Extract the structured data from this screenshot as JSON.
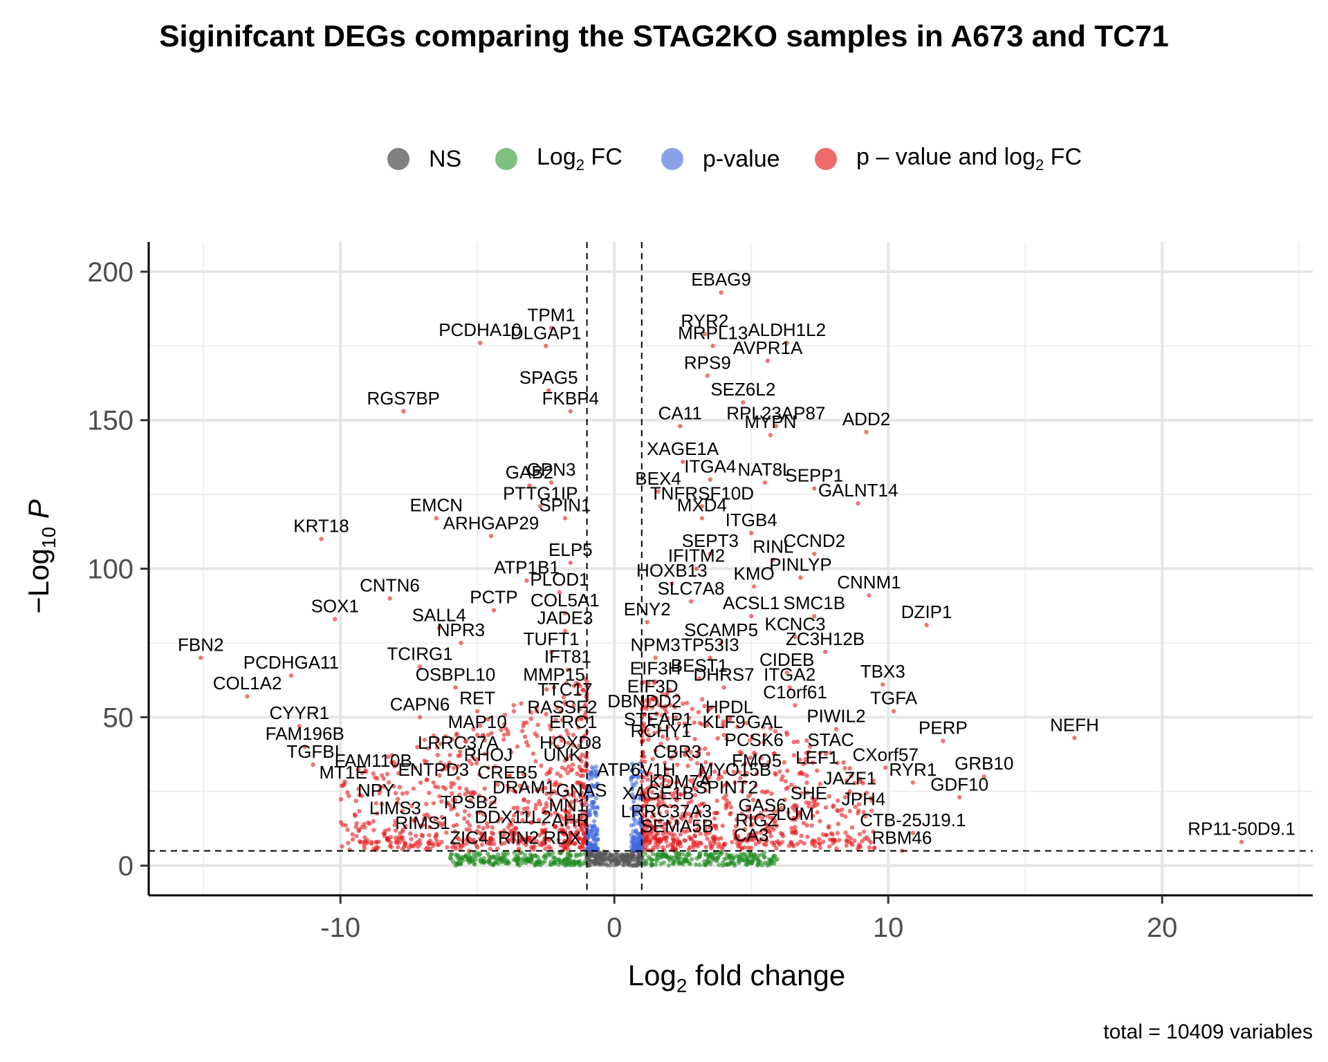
{
  "title": "Siginifcant DEGs comparing the STAG2KO samples in A673 and TC71",
  "caption": "total = 10409 variables",
  "legend": [
    {
      "key": "NS",
      "label": "NS",
      "color": "#808080"
    },
    {
      "key": "FC",
      "label": "Log",
      "sub": "2",
      "after": " FC",
      "color": "#7fbf7f"
    },
    {
      "key": "P",
      "label": "p-value",
      "color": "#8aa2e8"
    },
    {
      "key": "FC_P",
      "label": "p – value and log",
      "sub": "2",
      "after": " FC",
      "color": "#ee6b6b"
    }
  ],
  "chart_data": {
    "type": "scatter",
    "title": "Siginifcant DEGs comparing the STAG2KO samples in A673 and TC71",
    "xlabel": "Log2 fold change",
    "ylabel": "-Log10 P",
    "xlim": [
      -17,
      25.5
    ],
    "ylim": [
      -10,
      210
    ],
    "x_ticks": [
      -10,
      0,
      10,
      20
    ],
    "y_ticks": [
      0,
      50,
      100,
      150,
      200
    ],
    "grid": true,
    "legend_position": "top",
    "fc_cutoff": 1,
    "p_cutoff_neglog10": 5,
    "colors": {
      "NS": "#595959",
      "FC": "#228b22",
      "P": "#4169e1",
      "FC_P": "#e41a1c"
    },
    "labeled_genes": [
      {
        "label": "EBAG9",
        "x": 3.9,
        "y": 193
      },
      {
        "label": "PCDHA10",
        "x": -4.9,
        "y": 176
      },
      {
        "label": "TPM1",
        "x": -2.3,
        "y": 181
      },
      {
        "label": "DLGAP1",
        "x": -2.5,
        "y": 175
      },
      {
        "label": "RYR2",
        "x": 3.3,
        "y": 179
      },
      {
        "label": "ALDH1L2",
        "x": 6.3,
        "y": 176
      },
      {
        "label": "MRPL13",
        "x": 3.6,
        "y": 175
      },
      {
        "label": "AVPR1A",
        "x": 5.6,
        "y": 170
      },
      {
        "label": "RPS9",
        "x": 3.4,
        "y": 165
      },
      {
        "label": "SPAG5",
        "x": -2.4,
        "y": 160
      },
      {
        "label": "SEZ6L2",
        "x": 4.7,
        "y": 156
      },
      {
        "label": "RGS7BP",
        "x": -7.7,
        "y": 153
      },
      {
        "label": "FKBP4",
        "x": -1.6,
        "y": 153
      },
      {
        "label": "CA11",
        "x": 2.4,
        "y": 148
      },
      {
        "label": "RPL23AP87",
        "x": 5.9,
        "y": 148
      },
      {
        "label": "MYPN",
        "x": 5.7,
        "y": 145
      },
      {
        "label": "ADD2",
        "x": 9.2,
        "y": 146
      },
      {
        "label": "XAGE1A",
        "x": 2.5,
        "y": 136
      },
      {
        "label": "NAT8L",
        "x": 5.5,
        "y": 129
      },
      {
        "label": "ITGA4",
        "x": 3.5,
        "y": 130
      },
      {
        "label": "GAB2",
        "x": -3.1,
        "y": 128
      },
      {
        "label": "GPN3",
        "x": -2.3,
        "y": 129
      },
      {
        "label": "BEX4",
        "x": 1.6,
        "y": 126
      },
      {
        "label": "SEPP1",
        "x": 7.3,
        "y": 127
      },
      {
        "label": "PTTG1IP",
        "x": -2.7,
        "y": 121
      },
      {
        "label": "TNFRSF10D",
        "x": 3.2,
        "y": 121
      },
      {
        "label": "GALNT14",
        "x": 8.9,
        "y": 122
      },
      {
        "label": "EMCN",
        "x": -6.5,
        "y": 117
      },
      {
        "label": "SPIN1",
        "x": -1.8,
        "y": 117
      },
      {
        "label": "MXD4",
        "x": 3.2,
        "y": 117
      },
      {
        "label": "ARHGAP29",
        "x": -4.5,
        "y": 111
      },
      {
        "label": "ITGB4",
        "x": 5.0,
        "y": 112
      },
      {
        "label": "KRT18",
        "x": -10.7,
        "y": 110
      },
      {
        "label": "SEPT3",
        "x": 3.5,
        "y": 105
      },
      {
        "label": "RINL",
        "x": 5.8,
        "y": 103
      },
      {
        "label": "CCND2",
        "x": 7.3,
        "y": 105
      },
      {
        "label": "ELP5",
        "x": -1.6,
        "y": 102
      },
      {
        "label": "IFITM2",
        "x": 3.0,
        "y": 100
      },
      {
        "label": "PINLYP",
        "x": 6.8,
        "y": 97
      },
      {
        "label": "ATP1B1",
        "x": -3.2,
        "y": 96
      },
      {
        "label": "HOXB13",
        "x": 2.1,
        "y": 95
      },
      {
        "label": "KMO",
        "x": 5.1,
        "y": 94
      },
      {
        "label": "CNTN6",
        "x": -8.2,
        "y": 90
      },
      {
        "label": "PLOD1",
        "x": -2.0,
        "y": 92
      },
      {
        "label": "CNNM1",
        "x": 9.3,
        "y": 91
      },
      {
        "label": "PCTP",
        "x": -4.4,
        "y": 86
      },
      {
        "label": "SLC7A8",
        "x": 2.8,
        "y": 89
      },
      {
        "label": "COL5A1",
        "x": -1.8,
        "y": 85
      },
      {
        "label": "ACSL1",
        "x": 5.0,
        "y": 84
      },
      {
        "label": "SMC1B",
        "x": 7.3,
        "y": 84
      },
      {
        "label": "DZIP1",
        "x": 11.4,
        "y": 81
      },
      {
        "label": "SOX1",
        "x": -10.2,
        "y": 83
      },
      {
        "label": "SALL4",
        "x": -6.4,
        "y": 80
      },
      {
        "label": "ENY2",
        "x": 1.2,
        "y": 82
      },
      {
        "label": "JADE3",
        "x": -1.8,
        "y": 79
      },
      {
        "label": "KCNC3",
        "x": 6.6,
        "y": 77
      },
      {
        "label": "NPR3",
        "x": -5.6,
        "y": 75
      },
      {
        "label": "SCAMP5",
        "x": 3.9,
        "y": 75
      },
      {
        "label": "ZC3H12B",
        "x": 7.7,
        "y": 72
      },
      {
        "label": "TUFT1",
        "x": -2.3,
        "y": 72
      },
      {
        "label": "FBN2",
        "x": -15.1,
        "y": 70
      },
      {
        "label": "NPM3",
        "x": 1.5,
        "y": 70
      },
      {
        "label": "TP53I3",
        "x": 3.5,
        "y": 70
      },
      {
        "label": "TCIRG1",
        "x": -7.1,
        "y": 67
      },
      {
        "label": "PCDHGA11",
        "x": -11.8,
        "y": 64
      },
      {
        "label": "IFT81",
        "x": -1.7,
        "y": 66
      },
      {
        "label": "CIDEB",
        "x": 6.3,
        "y": 65
      },
      {
        "label": "BEST1",
        "x": 3.1,
        "y": 63
      },
      {
        "label": "EIF3H",
        "x": 1.5,
        "y": 62
      },
      {
        "label": "TBX3",
        "x": 9.8,
        "y": 61
      },
      {
        "label": "OSBPL10",
        "x": -5.8,
        "y": 60
      },
      {
        "label": "MMP15",
        "x": -2.2,
        "y": 60
      },
      {
        "label": "DHRS7",
        "x": 4.0,
        "y": 60
      },
      {
        "label": "ITGA2",
        "x": 6.4,
        "y": 60
      },
      {
        "label": "EIF3D",
        "x": 1.4,
        "y": 56
      },
      {
        "label": "TTC17",
        "x": -1.8,
        "y": 55
      },
      {
        "label": "C1orf61",
        "x": 6.6,
        "y": 54
      },
      {
        "label": "COL1A2",
        "x": -13.4,
        "y": 57
      },
      {
        "label": "RET",
        "x": -5.0,
        "y": 52
      },
      {
        "label": "TGFA",
        "x": 10.2,
        "y": 52
      },
      {
        "label": "CAPN6",
        "x": -7.1,
        "y": 50
      },
      {
        "label": "RASSF2",
        "x": -1.9,
        "y": 49
      },
      {
        "label": "DBNDD2",
        "x": 1.1,
        "y": 51
      },
      {
        "label": "HPDL",
        "x": 4.2,
        "y": 49
      },
      {
        "label": "CYYR1",
        "x": -11.5,
        "y": 47
      },
      {
        "label": "PIWIL2",
        "x": 8.1,
        "y": 46
      },
      {
        "label": "STEAP1",
        "x": 1.6,
        "y": 45
      },
      {
        "label": "MAP10",
        "x": -5.0,
        "y": 44
      },
      {
        "label": "ERC1",
        "x": -1.5,
        "y": 44
      },
      {
        "label": "KLF9",
        "x": 4.0,
        "y": 44
      },
      {
        "label": "GAL",
        "x": 5.5,
        "y": 44
      },
      {
        "label": "NEFH",
        "x": 16.8,
        "y": 43
      },
      {
        "label": "PERP",
        "x": 12.0,
        "y": 42
      },
      {
        "label": "FAM196B",
        "x": -11.3,
        "y": 40
      },
      {
        "label": "RCHY1",
        "x": 1.7,
        "y": 41
      },
      {
        "label": "LRRC37A",
        "x": -5.7,
        "y": 37
      },
      {
        "label": "HOXD8",
        "x": -1.6,
        "y": 37
      },
      {
        "label": "PCSK6",
        "x": 5.1,
        "y": 38
      },
      {
        "label": "STAC",
        "x": 7.9,
        "y": 38
      },
      {
        "label": "CBR3",
        "x": 2.3,
        "y": 34
      },
      {
        "label": "TGFBI",
        "x": -11.0,
        "y": 34
      },
      {
        "label": "RHOJ",
        "x": -4.6,
        "y": 33
      },
      {
        "label": "UNK",
        "x": -1.9,
        "y": 33
      },
      {
        "label": "CXorf57",
        "x": 9.9,
        "y": 33
      },
      {
        "label": "FAM110B",
        "x": -8.8,
        "y": 31
      },
      {
        "label": "FMO5",
        "x": 5.2,
        "y": 31
      },
      {
        "label": "LEF1",
        "x": 7.4,
        "y": 32
      },
      {
        "label": "GRB10",
        "x": 13.5,
        "y": 30
      },
      {
        "label": "ATP6V1H",
        "x": 0.8,
        "y": 28
      },
      {
        "label": "MT1E",
        "x": -9.9,
        "y": 27
      },
      {
        "label": "ENTPD3",
        "x": -6.6,
        "y": 28
      },
      {
        "label": "CREB5",
        "x": -3.9,
        "y": 27
      },
      {
        "label": "MYO15B",
        "x": 4.4,
        "y": 28
      },
      {
        "label": "RYR1",
        "x": 10.9,
        "y": 28
      },
      {
        "label": "JAZF1",
        "x": 8.6,
        "y": 25
      },
      {
        "label": "KDM7A",
        "x": 2.4,
        "y": 24
      },
      {
        "label": "DRAM1",
        "x": -3.3,
        "y": 22
      },
      {
        "label": "GNAS",
        "x": -1.2,
        "y": 21
      },
      {
        "label": "SPINT2",
        "x": 4.1,
        "y": 22
      },
      {
        "label": "GDF10",
        "x": 12.6,
        "y": 23
      },
      {
        "label": "NPY",
        "x": -8.7,
        "y": 21
      },
      {
        "label": "XAGE1B",
        "x": 1.6,
        "y": 20
      },
      {
        "label": "SHE",
        "x": 7.1,
        "y": 20
      },
      {
        "label": "JPH4",
        "x": 9.1,
        "y": 18
      },
      {
        "label": "TPSB2",
        "x": -5.3,
        "y": 17
      },
      {
        "label": "MN1",
        "x": -1.7,
        "y": 16
      },
      {
        "label": "GAS6",
        "x": 5.4,
        "y": 16
      },
      {
        "label": "LIMS3",
        "x": -8.0,
        "y": 15
      },
      {
        "label": "LRRC37A3",
        "x": 1.9,
        "y": 14
      },
      {
        "label": "LUM",
        "x": 6.6,
        "y": 13
      },
      {
        "label": "DDX11L2",
        "x": -3.7,
        "y": 12
      },
      {
        "label": "AHR",
        "x": -1.6,
        "y": 11
      },
      {
        "label": "RIGZ",
        "x": 5.2,
        "y": 11
      },
      {
        "label": "CTB-25J19.1",
        "x": 10.9,
        "y": 11
      },
      {
        "label": "RIMS1",
        "x": -7.0,
        "y": 10
      },
      {
        "label": "SEMA5B",
        "x": 2.3,
        "y": 9
      },
      {
        "label": "RP11-50D9.1",
        "x": 22.9,
        "y": 8
      },
      {
        "label": "ZIC4",
        "x": -5.3,
        "y": 5
      },
      {
        "label": "RIN2",
        "x": -3.5,
        "y": 5
      },
      {
        "label": "RDX",
        "x": -1.9,
        "y": 5
      },
      {
        "label": "CA3",
        "x": 5.0,
        "y": 6
      },
      {
        "label": "RBM46",
        "x": 10.5,
        "y": 5
      }
    ]
  }
}
